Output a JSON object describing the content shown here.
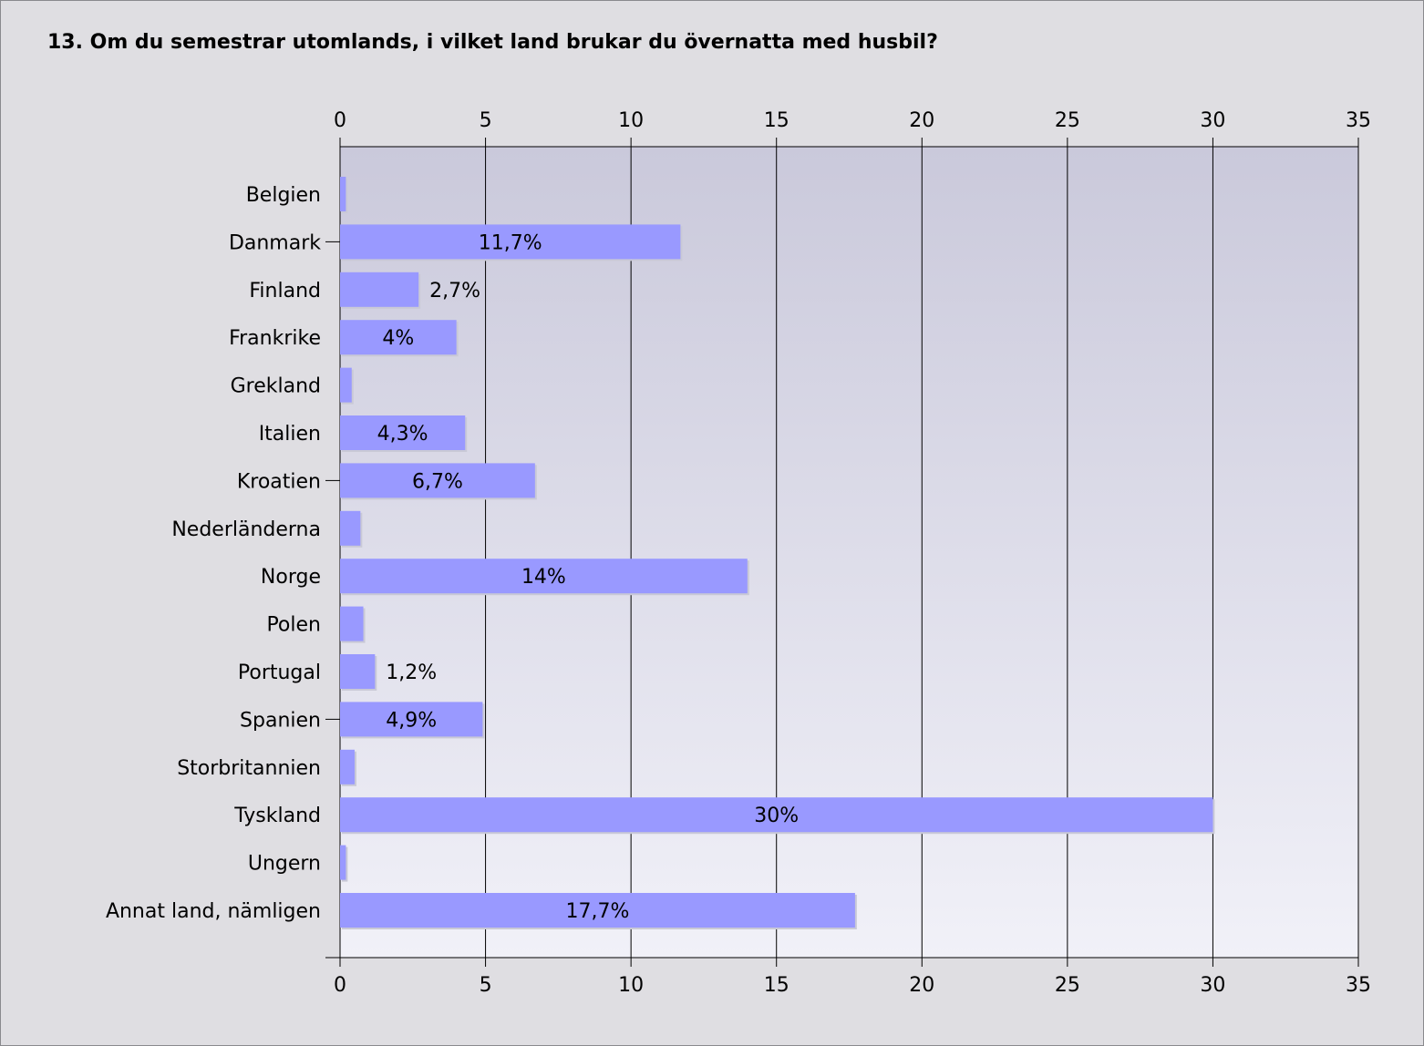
{
  "title": "13. Om du semestrar utomlands, i vilket land brukar du övernatta med husbil?",
  "colors": {
    "bar": "#9999ff",
    "plot_top": "#cac9db",
    "plot_bottom": "#f1f1f8",
    "background": "#dfdee2"
  },
  "chart_data": {
    "type": "bar",
    "orientation": "horizontal",
    "title": "13. Om du semestrar utomlands, i vilket land brukar du övernatta med husbil?",
    "xlabel": "",
    "ylabel": "",
    "xlim": [
      0,
      35
    ],
    "xticks": [
      "0",
      "5",
      "10",
      "15",
      "20",
      "25",
      "30",
      "35"
    ],
    "grid": true,
    "categories": [
      "Belgien",
      "Danmark",
      "Finland",
      "Frankrike",
      "Grekland",
      "Italien",
      "Kroatien",
      "Nederländerna",
      "Norge",
      "Polen",
      "Portugal",
      "Spanien",
      "Storbritannien",
      "Tyskland",
      "Ungern",
      "Annat land, nämligen"
    ],
    "values": [
      0.2,
      11.7,
      2.7,
      4,
      0.4,
      4.3,
      6.7,
      0.7,
      14,
      0.8,
      1.2,
      4.9,
      0.5,
      30,
      0.2,
      17.7
    ],
    "labels": [
      "",
      "11,7%",
      "2,7%",
      "4%",
      "",
      "4,3%",
      "6,7%",
      "",
      "14%",
      "",
      "1,2%",
      "4,9%",
      "",
      "30%",
      "",
      "17,7%"
    ]
  }
}
